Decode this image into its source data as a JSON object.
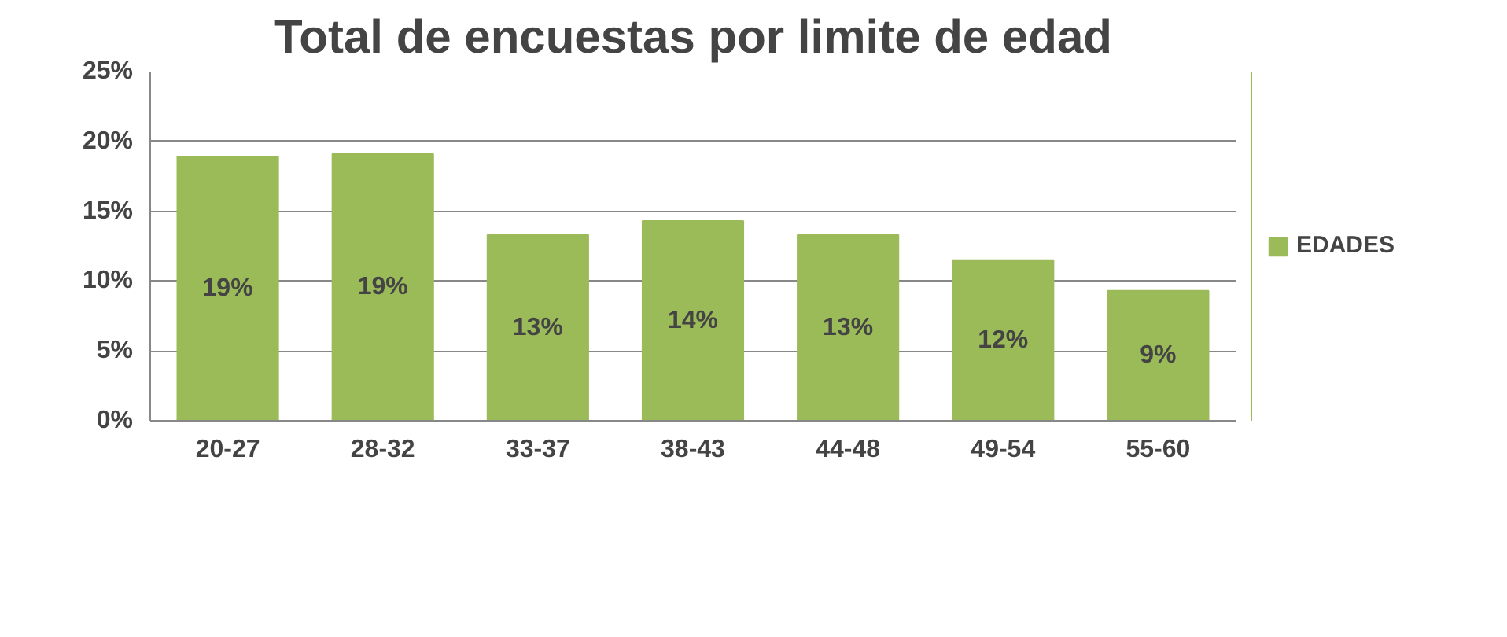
{
  "chart_data": {
    "type": "bar",
    "title": "Total de encuestas por limite de edad",
    "categories": [
      "20-27",
      "28-32",
      "33-37",
      "38-43",
      "44-48",
      "49-54",
      "55-60"
    ],
    "series": [
      {
        "name": "EDADES",
        "color": "#9bbb59",
        "values": [
          18.9,
          19.1,
          13.3,
          14.3,
          13.3,
          11.5,
          9.3
        ],
        "value_labels": [
          "19%",
          "19%",
          "13%",
          "14%",
          "13%",
          "12%",
          "9%"
        ]
      }
    ],
    "ylim": [
      0,
      25
    ],
    "yticks": [
      {
        "value": 0,
        "label": "0%"
      },
      {
        "value": 5,
        "label": "5%"
      },
      {
        "value": 10,
        "label": "10%"
      },
      {
        "value": 15,
        "label": "15%"
      },
      {
        "value": 20,
        "label": "20%"
      },
      {
        "value": 25,
        "label": "25%"
      }
    ],
    "grid": "y",
    "legend": "right"
  }
}
